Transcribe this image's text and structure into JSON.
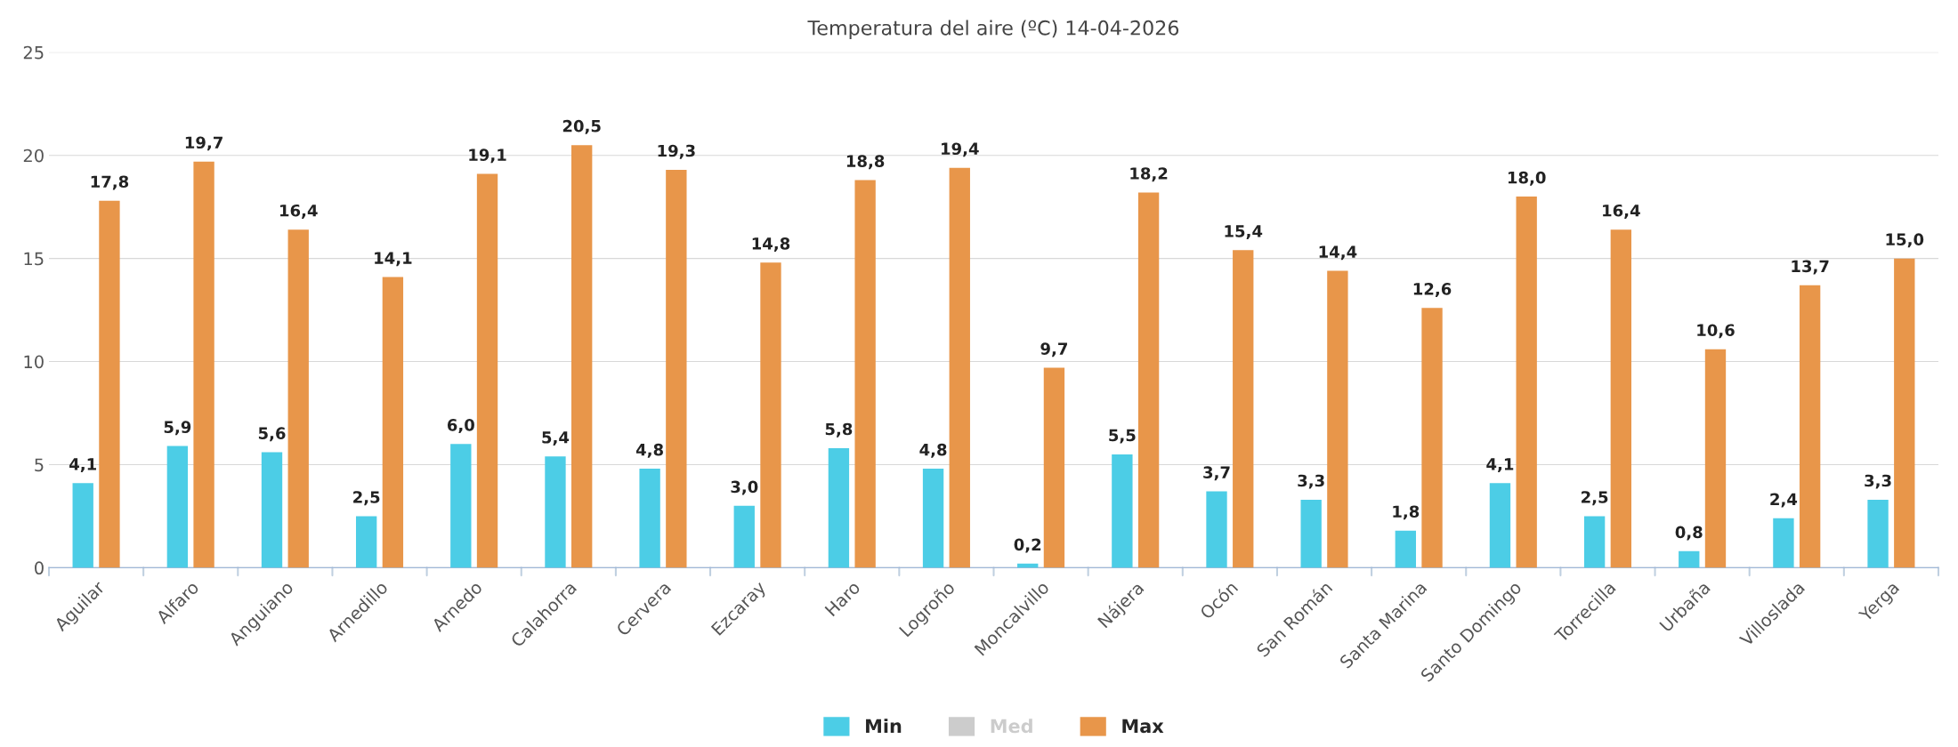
{
  "chart_data": {
    "type": "bar",
    "title": "Temperatura del aire (ºC) 14-04-2026",
    "categories": [
      "Aguilar",
      "Alfaro",
      "Anguiano",
      "Arnedillo",
      "Arnedo",
      "Calahorra",
      "Cervera",
      "Ezcaray",
      "Haro",
      "Logroño",
      "Moncalvillo",
      "Nájera",
      "Ocón",
      "San Román",
      "Santa Marina",
      "Santo Domingo",
      "Torrecilla",
      "Urbaña",
      "Villoslada",
      "Yerga"
    ],
    "series": [
      {
        "name": "Min",
        "color": "#4ccde6",
        "values": [
          4.1,
          5.9,
          5.6,
          2.5,
          6.0,
          5.4,
          4.8,
          3.0,
          5.8,
          4.8,
          0.2,
          5.5,
          3.7,
          3.3,
          1.8,
          4.1,
          2.5,
          0.8,
          2.4,
          3.3
        ],
        "value_labels": [
          "4,1",
          "5,9",
          "5,6",
          "2,5",
          "6,0",
          "5,4",
          "4,8",
          "3,0",
          "5,8",
          "4,8",
          "0,2",
          "5,5",
          "3,7",
          "3,3",
          "1,8",
          "4,1",
          "2,5",
          "0,8",
          "2,4",
          "3,3"
        ]
      },
      {
        "name": "Med",
        "color": "#cccccc",
        "values": [
          null,
          null,
          null,
          null,
          null,
          null,
          null,
          null,
          null,
          null,
          null,
          null,
          null,
          null,
          null,
          null,
          null,
          null,
          null,
          null
        ]
      },
      {
        "name": "Max",
        "color": "#e8964a",
        "values": [
          17.8,
          19.7,
          16.4,
          14.1,
          19.1,
          20.5,
          19.3,
          14.8,
          18.8,
          19.4,
          9.7,
          18.2,
          15.4,
          14.4,
          12.6,
          18.0,
          16.4,
          10.6,
          13.7,
          15.0
        ],
        "value_labels": [
          "17,8",
          "19,7",
          "16,4",
          "14,1",
          "19,1",
          "20,5",
          "19,3",
          "14,8",
          "18,8",
          "19,4",
          "9,7",
          "18,2",
          "15,4",
          "14,4",
          "12,6",
          "18,0",
          "16,4",
          "10,6",
          "13,7",
          "15,0"
        ]
      }
    ],
    "ylim": [
      0,
      25
    ],
    "yticks": [
      0,
      5,
      10,
      15,
      20,
      25
    ],
    "grid": "y",
    "legend": "bottom"
  }
}
